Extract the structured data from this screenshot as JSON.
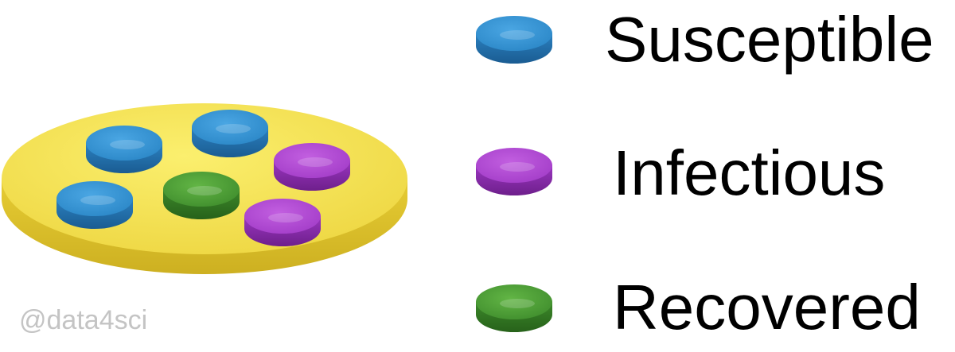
{
  "legend": {
    "items": [
      {
        "label": "Susceptible",
        "color": "#2b86c7",
        "icon": "blue-disc-icon"
      },
      {
        "label": "Infectious",
        "color": "#a23bc9",
        "icon": "purple-disc-icon"
      },
      {
        "label": "Recovered",
        "color": "#3f9a2c",
        "icon": "green-disc-icon"
      }
    ]
  },
  "plate": {
    "color": "#f4e04b",
    "discs": [
      {
        "state": "Susceptible",
        "icon": "blue-disc-icon"
      },
      {
        "state": "Susceptible",
        "icon": "blue-disc-icon"
      },
      {
        "state": "Infectious",
        "icon": "purple-disc-icon"
      },
      {
        "state": "Susceptible",
        "icon": "blue-disc-icon"
      },
      {
        "state": "Recovered",
        "icon": "green-disc-icon"
      },
      {
        "state": "Infectious",
        "icon": "purple-disc-icon"
      }
    ]
  },
  "watermark": "@data4sci"
}
